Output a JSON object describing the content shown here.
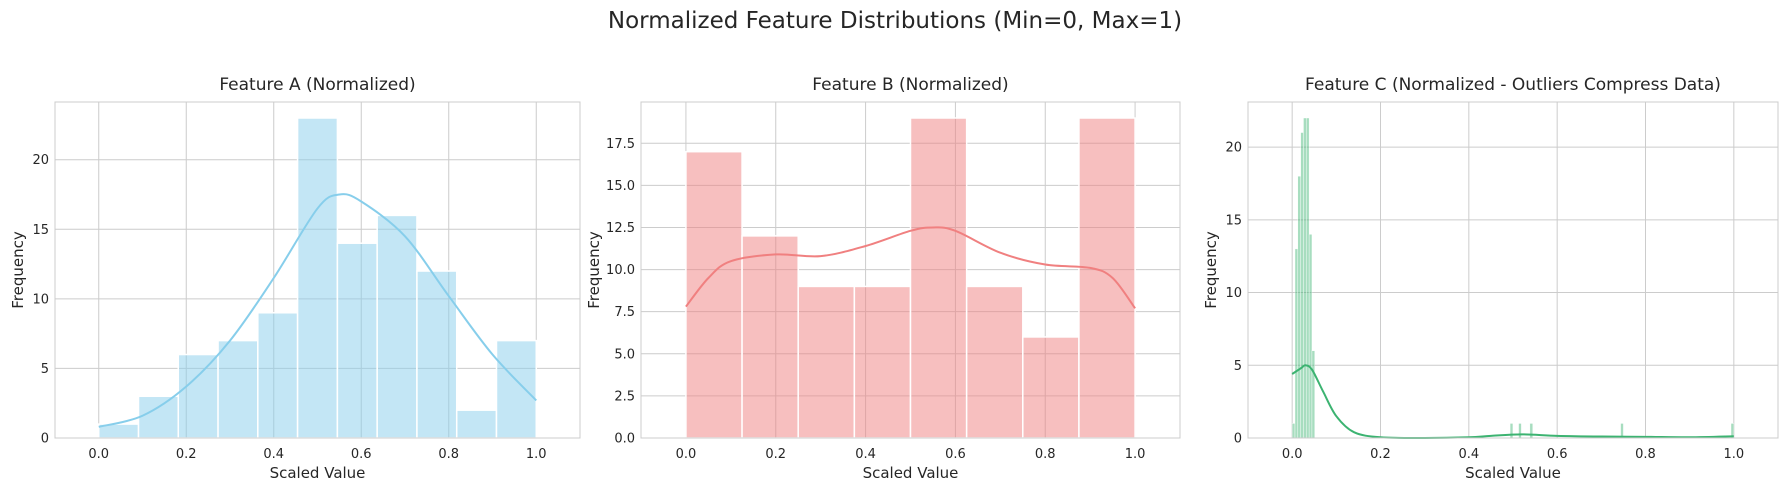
{
  "figure": {
    "title": "Normalized Feature Distributions (Min=0, Max=1)"
  },
  "chart_data": [
    {
      "type": "bar",
      "title": "Feature A (Normalized)",
      "xlabel": "Scaled Value",
      "ylabel": "Frequency",
      "xlim": [
        -0.1,
        1.1
      ],
      "ylim": [
        0,
        24.15
      ],
      "grid": true,
      "legend": "none",
      "xticks": [
        "0.0",
        "0.2",
        "0.4",
        "0.6",
        "0.8",
        "1.0"
      ],
      "yticks": [
        "0",
        "5",
        "10",
        "15",
        "20"
      ],
      "bin_edges": [
        0.0,
        0.0909,
        0.1818,
        0.2727,
        0.3636,
        0.4545,
        0.5455,
        0.6364,
        0.7273,
        0.8182,
        0.9091,
        1.0
      ],
      "values": [
        1,
        3,
        6,
        7,
        9,
        23,
        14,
        16,
        12,
        2,
        7
      ],
      "kde": {
        "x": [
          0.0,
          0.1,
          0.2,
          0.3,
          0.4,
          0.5,
          0.55,
          0.6,
          0.7,
          0.8,
          0.9,
          1.0
        ],
        "y": [
          0.8,
          1.6,
          3.7,
          7.0,
          11.5,
          16.5,
          17.5,
          17.0,
          14.5,
          10.2,
          6.0,
          2.7
        ]
      },
      "colors": {
        "bar": "#87ceeb",
        "line": "#87ceeb"
      }
    },
    {
      "type": "bar",
      "title": "Feature B (Normalized)",
      "xlabel": "Scaled Value",
      "ylabel": "Frequency",
      "xlim": [
        -0.1,
        1.1
      ],
      "ylim": [
        0,
        19.95
      ],
      "grid": true,
      "legend": "none",
      "xticks": [
        "0.0",
        "0.2",
        "0.4",
        "0.6",
        "0.8",
        "1.0"
      ],
      "yticks": [
        "0.0",
        "2.5",
        "5.0",
        "7.5",
        "10.0",
        "12.5",
        "15.0",
        "17.5"
      ],
      "bin_edges": [
        0.0,
        0.125,
        0.25,
        0.375,
        0.5,
        0.625,
        0.75,
        0.875,
        1.0
      ],
      "values": [
        17,
        12,
        9,
        9,
        19,
        9,
        6,
        19
      ],
      "kde": {
        "x": [
          0.0,
          0.05,
          0.1,
          0.2,
          0.3,
          0.4,
          0.5,
          0.55,
          0.6,
          0.7,
          0.8,
          0.9,
          0.95,
          1.0
        ],
        "y": [
          7.8,
          9.5,
          10.5,
          10.9,
          10.8,
          11.4,
          12.3,
          12.5,
          12.3,
          11.0,
          10.3,
          10.1,
          9.5,
          7.7
        ]
      },
      "colors": {
        "bar": "#f08080",
        "line": "#f08080"
      }
    },
    {
      "type": "bar",
      "title": "Feature C (Normalized - Outliers Compress Data)",
      "xlabel": "Scaled Value",
      "ylabel": "Frequency",
      "xlim": [
        -0.1,
        1.1
      ],
      "ylim": [
        0,
        23.1
      ],
      "grid": true,
      "legend": "none",
      "xticks": [
        "0.0",
        "0.2",
        "0.4",
        "0.6",
        "0.8",
        "1.0"
      ],
      "yticks": [
        "0",
        "5",
        "10",
        "15",
        "20"
      ],
      "bin_width": 0.0064,
      "bins": [
        {
          "x": 0.0,
          "value": 1
        },
        {
          "x": 0.0064,
          "value": 13
        },
        {
          "x": 0.0128,
          "value": 18
        },
        {
          "x": 0.0192,
          "value": 21
        },
        {
          "x": 0.0256,
          "value": 22
        },
        {
          "x": 0.032,
          "value": 22
        },
        {
          "x": 0.0384,
          "value": 14
        },
        {
          "x": 0.0448,
          "value": 6
        },
        {
          "x": 0.4934,
          "value": 1
        },
        {
          "x": 0.5126,
          "value": 1
        },
        {
          "x": 0.5382,
          "value": 1
        },
        {
          "x": 0.7436,
          "value": 1
        },
        {
          "x": 0.9936,
          "value": 1
        }
      ],
      "kde": {
        "x": [
          0.0,
          0.02,
          0.03,
          0.045,
          0.07,
          0.1,
          0.14,
          0.2,
          0.3,
          0.4,
          0.45,
          0.52,
          0.6,
          0.7,
          0.8,
          0.9,
          1.0
        ],
        "y": [
          4.4,
          4.8,
          5.0,
          4.7,
          3.2,
          1.5,
          0.4,
          0.05,
          0.0,
          0.05,
          0.15,
          0.25,
          0.15,
          0.1,
          0.08,
          0.05,
          0.12
        ]
      },
      "colors": {
        "bar": "#3cb371",
        "line": "#3cb371"
      }
    }
  ]
}
